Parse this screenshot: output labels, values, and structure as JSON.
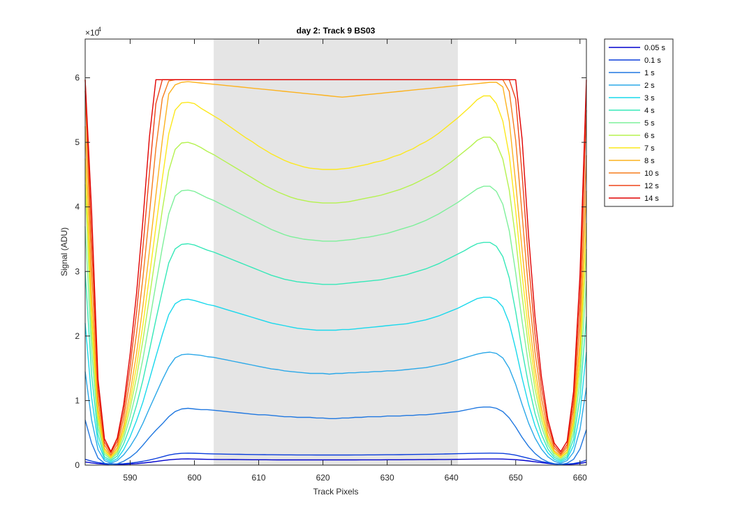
{
  "chart_data": {
    "type": "line",
    "title": "day 2: Track 9  BS03",
    "xlabel": "Track Pixels",
    "ylabel": "Signal (ADU)",
    "y_exponent_label": "×10",
    "y_exponent_power": "4",
    "xlim": [
      583,
      661
    ],
    "ylim": [
      0,
      66000
    ],
    "x_ticks": [
      590,
      600,
      610,
      620,
      630,
      640,
      650,
      660
    ],
    "y_ticks": [
      0,
      10000,
      20000,
      30000,
      40000,
      50000,
      60000
    ],
    "y_tick_labels": [
      "0",
      "1",
      "2",
      "3",
      "4",
      "5",
      "6"
    ],
    "shaded_region": {
      "x_start": 603,
      "x_end": 641,
      "color": "#e5e5e5"
    },
    "grid": false,
    "legend_position": "outside-right",
    "saturation_level": 59700,
    "x": [
      583,
      584,
      585,
      586,
      587,
      588,
      589,
      590,
      591,
      592,
      593,
      594,
      595,
      596,
      597,
      598,
      599,
      600,
      601,
      602,
      603,
      604,
      605,
      606,
      607,
      608,
      609,
      610,
      611,
      612,
      613,
      614,
      615,
      616,
      617,
      618,
      619,
      620,
      621,
      622,
      623,
      624,
      625,
      626,
      627,
      628,
      629,
      630,
      631,
      632,
      633,
      634,
      635,
      636,
      637,
      638,
      639,
      640,
      641,
      642,
      643,
      644,
      645,
      646,
      647,
      648,
      649,
      650,
      651,
      652,
      653,
      654,
      655,
      656,
      657,
      658,
      659,
      660,
      661
    ],
    "series": [
      {
        "name": "0.05 s",
        "color": "#0000cd",
        "values": [
          500,
          350,
          230,
          150,
          110,
          110,
          130,
          170,
          230,
          320,
          430,
          560,
          690,
          820,
          900,
          950,
          960,
          940,
          920,
          900,
          890,
          880,
          870,
          860,
          850,
          840,
          830,
          830,
          830,
          820,
          810,
          810,
          810,
          810,
          810,
          810,
          810,
          810,
          810,
          810,
          810,
          810,
          810,
          820,
          820,
          820,
          820,
          830,
          830,
          830,
          840,
          840,
          850,
          850,
          860,
          870,
          880,
          890,
          900,
          910,
          930,
          940,
          950,
          950,
          950,
          940,
          900,
          840,
          760,
          650,
          520,
          390,
          260,
          160,
          110,
          110,
          150,
          250,
          450
        ]
      },
      {
        "name": "0.1 s",
        "color": "#0a3ddc",
        "values": [
          900,
          620,
          400,
          260,
          190,
          190,
          230,
          310,
          430,
          590,
          790,
          1030,
          1290,
          1560,
          1740,
          1830,
          1860,
          1840,
          1800,
          1760,
          1740,
          1720,
          1700,
          1690,
          1670,
          1650,
          1640,
          1630,
          1620,
          1610,
          1600,
          1590,
          1590,
          1580,
          1580,
          1580,
          1570,
          1570,
          1570,
          1570,
          1570,
          1570,
          1580,
          1580,
          1590,
          1590,
          1600,
          1610,
          1610,
          1620,
          1640,
          1650,
          1660,
          1680,
          1690,
          1710,
          1730,
          1750,
          1770,
          1790,
          1810,
          1830,
          1850,
          1860,
          1850,
          1810,
          1710,
          1540,
          1310,
          1060,
          800,
          560,
          370,
          230,
          170,
          170,
          250,
          430,
          780
        ]
      },
      {
        "name": "1 s",
        "color": "#1f77e0",
        "values": [
          7000,
          3400,
          1100,
          300,
          100,
          200,
          600,
          1200,
          2000,
          3100,
          4300,
          5400,
          6400,
          7500,
          8300,
          8700,
          8800,
          8700,
          8600,
          8600,
          8500,
          8400,
          8300,
          8200,
          8100,
          8000,
          7900,
          7800,
          7800,
          7700,
          7600,
          7500,
          7500,
          7400,
          7400,
          7400,
          7300,
          7300,
          7200,
          7200,
          7300,
          7300,
          7400,
          7400,
          7500,
          7500,
          7500,
          7600,
          7600,
          7600,
          7700,
          7700,
          7800,
          7800,
          7900,
          8000,
          8100,
          8200,
          8300,
          8500,
          8700,
          8900,
          9000,
          9000,
          8800,
          8300,
          7300,
          5900,
          4300,
          2900,
          1800,
          1000,
          500,
          200,
          100,
          300,
          900,
          2500,
          5500
        ]
      },
      {
        "name": "2 s",
        "color": "#2ba8e8",
        "values": [
          14500,
          7000,
          2400,
          700,
          300,
          700,
          1600,
          2900,
          4500,
          6500,
          8800,
          11000,
          13200,
          15200,
          16600,
          17100,
          17200,
          17100,
          17000,
          16800,
          16700,
          16500,
          16300,
          16100,
          15900,
          15700,
          15500,
          15300,
          15100,
          14900,
          14800,
          14600,
          14500,
          14400,
          14300,
          14200,
          14200,
          14200,
          14100,
          14200,
          14200,
          14300,
          14300,
          14400,
          14400,
          14500,
          14500,
          14600,
          14600,
          14700,
          14800,
          14900,
          15000,
          15100,
          15300,
          15500,
          15700,
          16000,
          16300,
          16600,
          16900,
          17200,
          17400,
          17500,
          17300,
          16600,
          15000,
          12500,
          9400,
          6500,
          4200,
          2500,
          1300,
          600,
          300,
          700,
          2000,
          5500,
          12000
        ]
      },
      {
        "name": "3 s",
        "color": "#19d8ec",
        "values": [
          22000,
          10500,
          3500,
          1000,
          500,
          1000,
          2400,
          4400,
          6900,
          9800,
          13300,
          16800,
          20200,
          23300,
          25000,
          25600,
          25700,
          25500,
          25200,
          24900,
          24700,
          24400,
          24100,
          23800,
          23500,
          23200,
          22900,
          22600,
          22300,
          22000,
          21800,
          21600,
          21400,
          21200,
          21100,
          21000,
          20900,
          20900,
          20900,
          20900,
          21000,
          21000,
          21100,
          21200,
          21300,
          21400,
          21500,
          21600,
          21700,
          21800,
          21900,
          22100,
          22300,
          22500,
          22800,
          23100,
          23500,
          23900,
          24300,
          24800,
          25300,
          25800,
          26000,
          26000,
          25600,
          24500,
          22000,
          18000,
          13500,
          9400,
          6100,
          3600,
          1900,
          900,
          500,
          1000,
          3000,
          8000,
          17500
        ]
      },
      {
        "name": "4 s",
        "color": "#36e8b8",
        "values": [
          30000,
          14000,
          4700,
          1300,
          700,
          1400,
          3300,
          6000,
          9300,
          13200,
          17800,
          22500,
          27000,
          31300,
          33500,
          34200,
          34300,
          34100,
          33700,
          33300,
          33000,
          32600,
          32200,
          31800,
          31400,
          31000,
          30600,
          30200,
          29800,
          29400,
          29100,
          28800,
          28600,
          28400,
          28300,
          28200,
          28100,
          28000,
          28000,
          28000,
          28100,
          28200,
          28300,
          28400,
          28500,
          28600,
          28700,
          28900,
          29100,
          29300,
          29500,
          29800,
          30100,
          30400,
          30800,
          31200,
          31700,
          32200,
          32700,
          33200,
          33800,
          34300,
          34500,
          34500,
          33900,
          32300,
          29000,
          23800,
          17800,
          12400,
          8000,
          4800,
          2500,
          1200,
          700,
          1300,
          4000,
          10500,
          23000
        ]
      },
      {
        "name": "5 s",
        "color": "#7df09a",
        "values": [
          37000,
          17500,
          5900,
          1700,
          900,
          1800,
          4100,
          7500,
          11600,
          16500,
          22200,
          28000,
          33700,
          38900,
          41700,
          42500,
          42600,
          42400,
          41900,
          41400,
          41000,
          40500,
          40000,
          39500,
          39000,
          38500,
          38000,
          37500,
          37000,
          36500,
          36100,
          35700,
          35400,
          35200,
          35000,
          34900,
          34800,
          34700,
          34700,
          34700,
          34800,
          34900,
          35000,
          35200,
          35300,
          35500,
          35700,
          35900,
          36200,
          36500,
          36800,
          37100,
          37500,
          37900,
          38400,
          38900,
          39500,
          40100,
          40700,
          41400,
          42100,
          42800,
          43200,
          43200,
          42400,
          40400,
          36300,
          29800,
          22300,
          15500,
          10000,
          6000,
          3100,
          1500,
          900,
          1600,
          5000,
          13000,
          28500
        ]
      },
      {
        "name": "6 s",
        "color": "#b5f24f",
        "values": [
          43500,
          20500,
          6900,
          2000,
          1100,
          2100,
          4800,
          8800,
          13600,
          19400,
          26000,
          32800,
          39500,
          45600,
          48900,
          49900,
          50000,
          49700,
          49200,
          48600,
          48100,
          47500,
          46900,
          46300,
          45700,
          45100,
          44500,
          43900,
          43300,
          42800,
          42300,
          41900,
          41500,
          41200,
          41000,
          40800,
          40700,
          40600,
          40600,
          40600,
          40700,
          40800,
          41000,
          41200,
          41400,
          41600,
          41800,
          42100,
          42400,
          42700,
          43100,
          43500,
          44000,
          44500,
          45000,
          45600,
          46300,
          47000,
          47800,
          48600,
          49400,
          50300,
          50800,
          50800,
          49800,
          47400,
          42600,
          35000,
          26200,
          18200,
          11800,
          7000,
          3600,
          1800,
          1100,
          1900,
          5900,
          15300,
          33500
        ]
      },
      {
        "name": "7 s",
        "color": "#fce81c",
        "values": [
          47500,
          23000,
          7800,
          2300,
          1200,
          2400,
          5400,
          9900,
          15300,
          21800,
          29300,
          36900,
          44400,
          51300,
          55000,
          56100,
          56200,
          56000,
          55300,
          54700,
          54100,
          53500,
          52800,
          52100,
          51400,
          50700,
          50100,
          49400,
          48800,
          48200,
          47700,
          47200,
          46800,
          46500,
          46200,
          46000,
          45900,
          45800,
          45800,
          45800,
          45900,
          46000,
          46200,
          46400,
          46600,
          46900,
          47100,
          47400,
          47800,
          48100,
          48600,
          49000,
          49600,
          50100,
          50700,
          51400,
          52200,
          53000,
          53800,
          54700,
          55600,
          56600,
          57200,
          57200,
          56000,
          53300,
          48000,
          39400,
          29500,
          20500,
          13300,
          7900,
          4100,
          2000,
          1200,
          2100,
          6600,
          17200,
          37500
        ]
      },
      {
        "name": "8 s",
        "color": "#fcb21e",
        "values": [
          52500,
          26000,
          8800,
          2600,
          1400,
          2700,
          6100,
          11200,
          17300,
          24700,
          33200,
          41800,
          50300,
          57500,
          58900,
          59300,
          59400,
          59300,
          59200,
          59100,
          59000,
          58900,
          58800,
          58700,
          58600,
          58500,
          58400,
          58300,
          58200,
          58100,
          58000,
          57900,
          57800,
          57700,
          57600,
          57500,
          57400,
          57300,
          57200,
          57100,
          57000,
          57100,
          57200,
          57300,
          57400,
          57500,
          57600,
          57700,
          57800,
          57900,
          58000,
          58100,
          58200,
          58300,
          58400,
          58500,
          58600,
          58700,
          58800,
          58900,
          59000,
          59100,
          59200,
          59300,
          59300,
          58600,
          53300,
          43700,
          33300,
          23200,
          15000,
          8900,
          4600,
          2200,
          1400,
          2400,
          7400,
          19200,
          42500
        ]
      },
      {
        "name": "10 s",
        "color": "#f57d1c",
        "values": [
          58000,
          30500,
          10300,
          3100,
          1600,
          3200,
          7200,
          13200,
          20400,
          29100,
          39000,
          49100,
          56800,
          59500,
          59700,
          59700,
          59700,
          59700,
          59700,
          59700,
          59700,
          59700,
          59700,
          59700,
          59700,
          59700,
          59700,
          59700,
          59700,
          59700,
          59700,
          59700,
          59700,
          59700,
          59700,
          59700,
          59700,
          59700,
          59700,
          59700,
          59700,
          59700,
          59700,
          59700,
          59700,
          59700,
          59700,
          59700,
          59700,
          59700,
          59700,
          59700,
          59700,
          59700,
          59700,
          59700,
          59700,
          59700,
          59700,
          59700,
          59700,
          59700,
          59700,
          59700,
          59700,
          59700,
          57900,
          50300,
          38800,
          27000,
          17500,
          10400,
          5400,
          2600,
          1600,
          2800,
          8700,
          22500,
          48000
        ]
      },
      {
        "name": "12 s",
        "color": "#ee4318",
        "values": [
          59700,
          35000,
          11900,
          3600,
          1900,
          3700,
          8300,
          15300,
          23700,
          33800,
          45300,
          56000,
          59700,
          59700,
          59700,
          59700,
          59700,
          59700,
          59700,
          59700,
          59700,
          59700,
          59700,
          59700,
          59700,
          59700,
          59700,
          59700,
          59700,
          59700,
          59700,
          59700,
          59700,
          59700,
          59700,
          59700,
          59700,
          59700,
          59700,
          59700,
          59700,
          59700,
          59700,
          59700,
          59700,
          59700,
          59700,
          59700,
          59700,
          59700,
          59700,
          59700,
          59700,
          59700,
          59700,
          59700,
          59700,
          59700,
          59700,
          59700,
          59700,
          59700,
          59700,
          59700,
          59700,
          59700,
          59700,
          56700,
          45000,
          31300,
          20300,
          12100,
          6300,
          3000,
          1800,
          3200,
          10000,
          26000,
          55000
        ]
      },
      {
        "name": "14 s",
        "color": "#e00000",
        "values": [
          59700,
          39500,
          13300,
          4100,
          2100,
          4200,
          9400,
          17200,
          26600,
          38000,
          50900,
          59700,
          59700,
          59700,
          59700,
          59700,
          59700,
          59700,
          59700,
          59700,
          59700,
          59700,
          59700,
          59700,
          59700,
          59700,
          59700,
          59700,
          59700,
          59700,
          59700,
          59700,
          59700,
          59700,
          59700,
          59700,
          59700,
          59700,
          59700,
          59700,
          59700,
          59700,
          59700,
          59700,
          59700,
          59700,
          59700,
          59700,
          59700,
          59700,
          59700,
          59700,
          59700,
          59700,
          59700,
          59700,
          59700,
          59700,
          59700,
          59700,
          59700,
          59700,
          59700,
          59700,
          59700,
          59700,
          59700,
          59700,
          50500,
          35500,
          23000,
          13700,
          7100,
          3400,
          2100,
          3700,
          11400,
          29500,
          59700
        ]
      }
    ]
  }
}
